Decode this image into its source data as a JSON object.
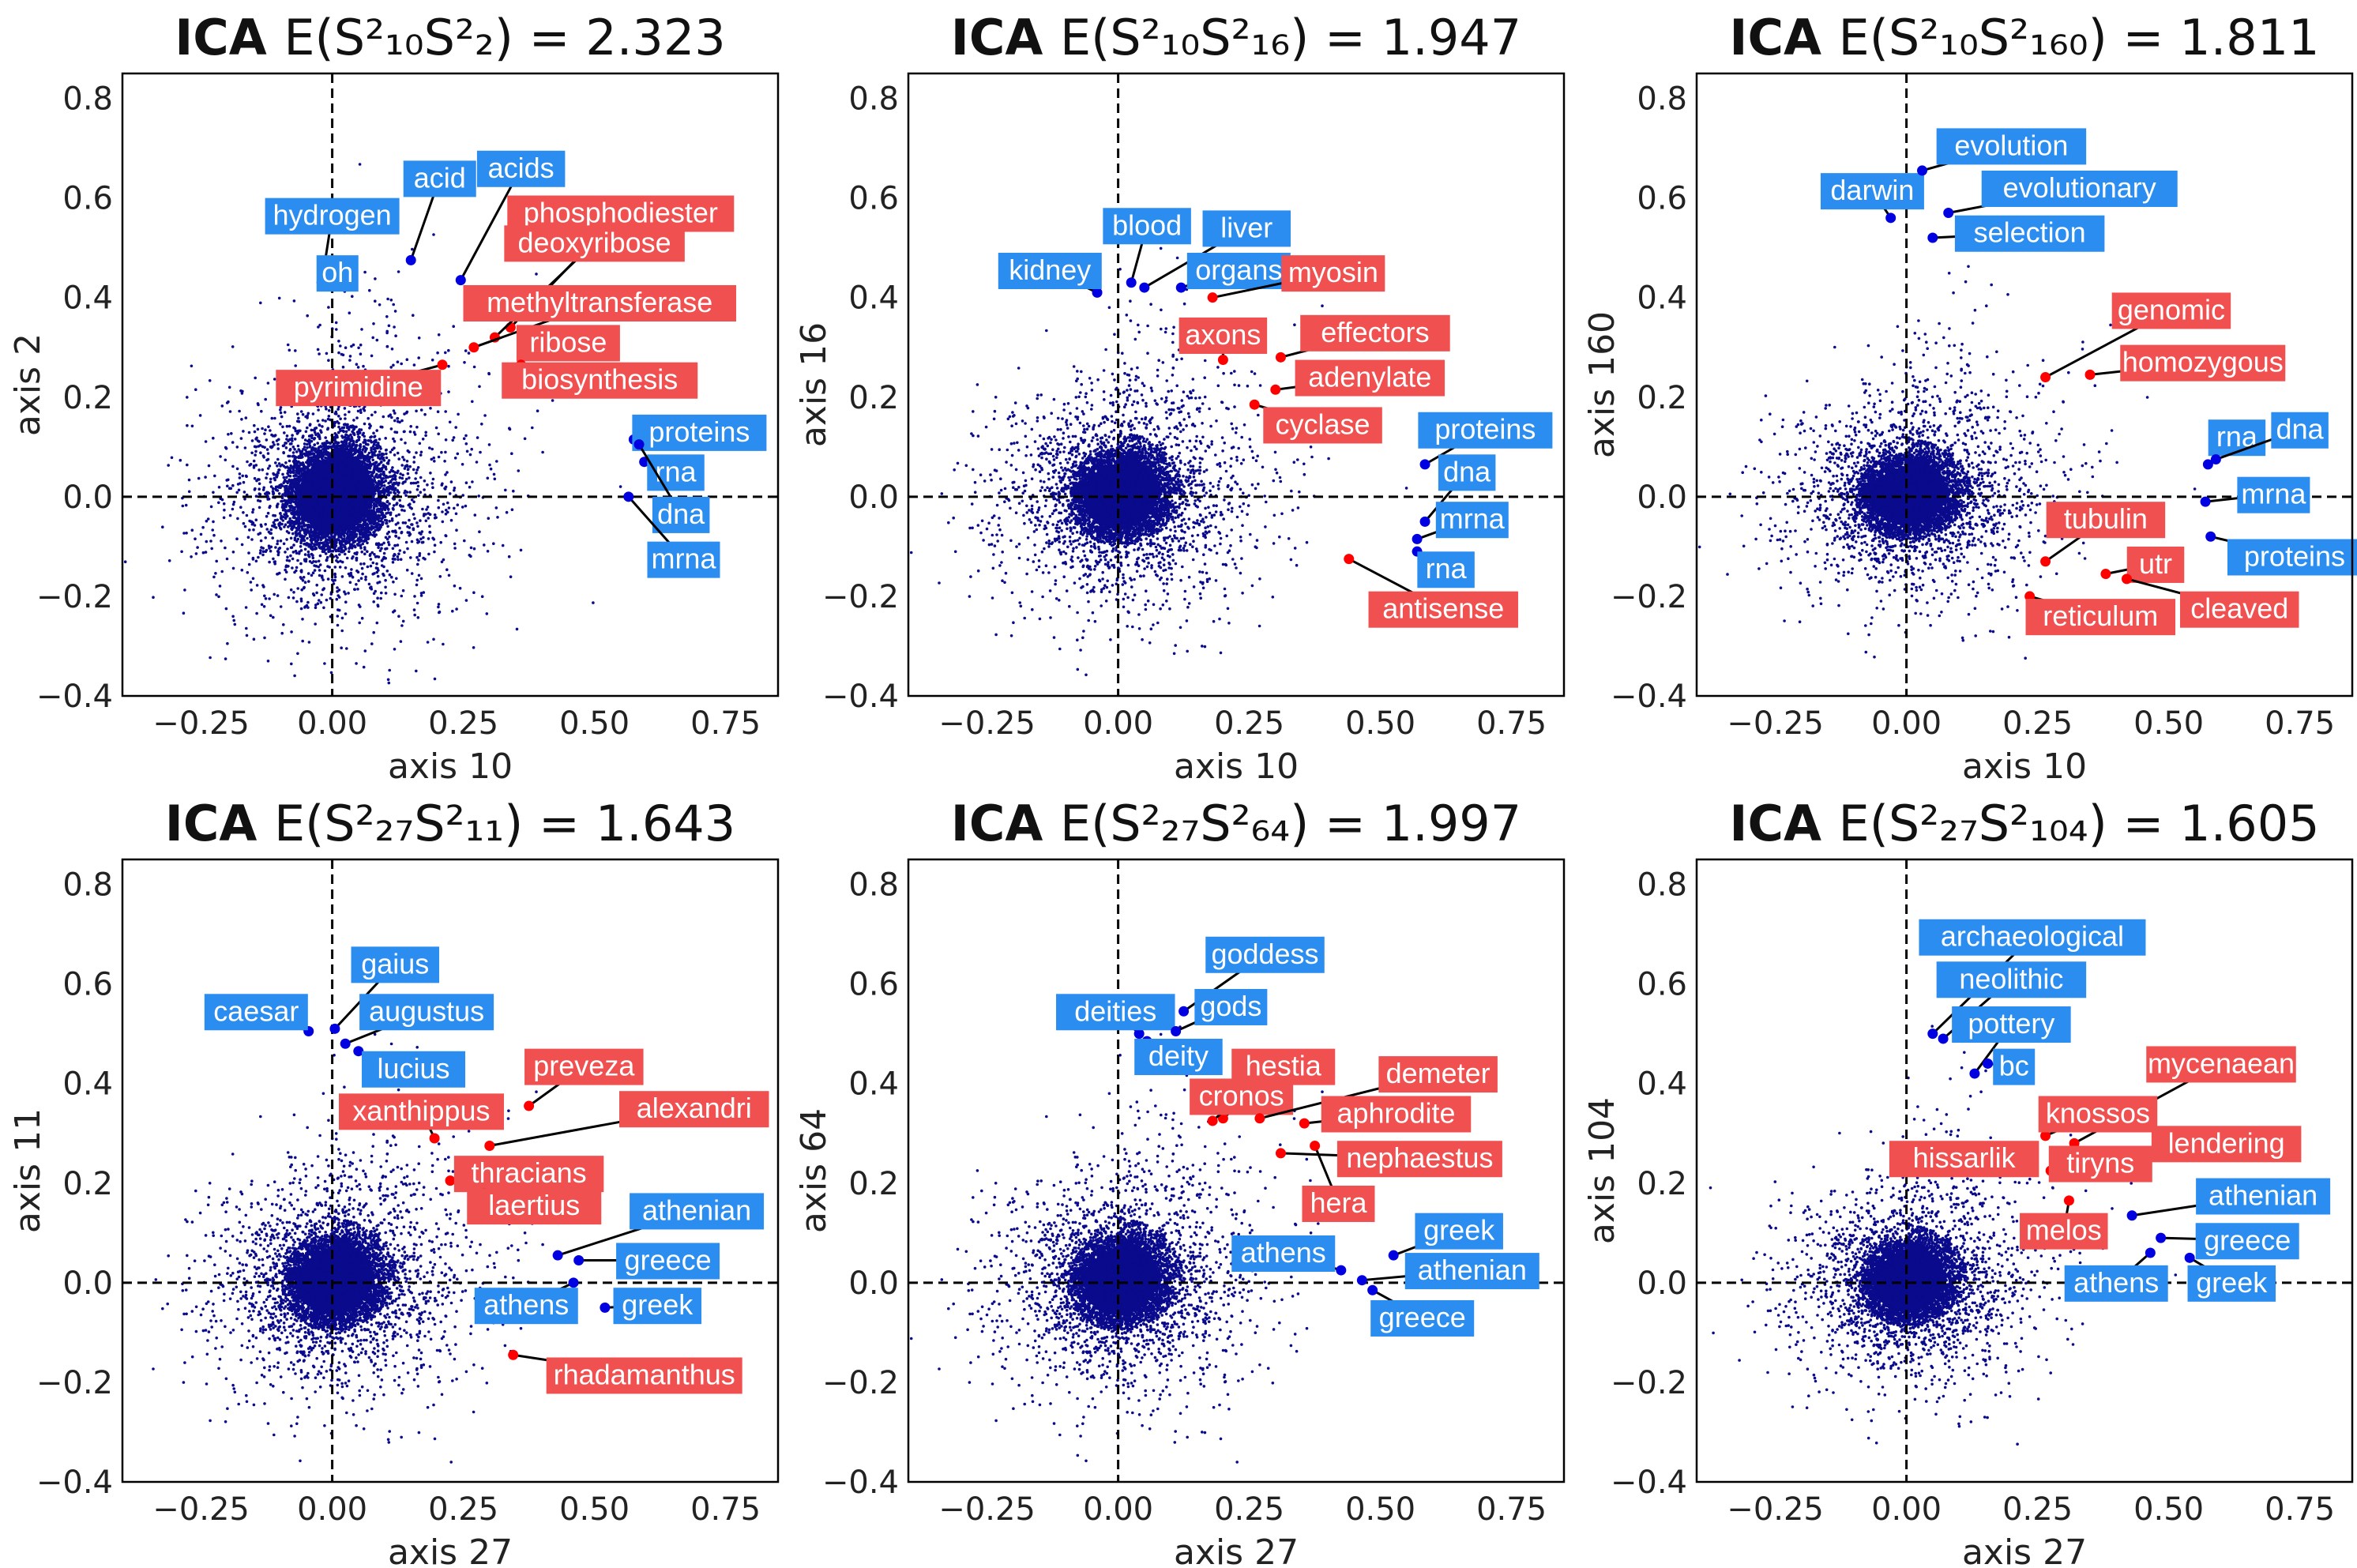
{
  "colors": {
    "scatter": "#0a0a8c",
    "blue_point": "#0000e0",
    "red_point": "#ff0000",
    "blue_box": "#2b8df0",
    "red_box": "#f05050",
    "label_text": "#ffffff",
    "frame": "#000000"
  },
  "chart_data": [
    {
      "type": "scatter",
      "title_bold": "ICA",
      "title_formula": "E(S²₁₀S²₂) = 2.323",
      "xlabel": "axis 10",
      "ylabel": "axis 2",
      "xlim": [
        -0.4,
        0.85
      ],
      "ylim": [
        -0.4,
        0.85
      ],
      "xticks": [
        -0.25,
        0.0,
        0.25,
        0.5,
        0.75
      ],
      "xtick_labels": [
        "−0.25",
        "0.00",
        "0.25",
        "0.50",
        "0.75"
      ],
      "yticks": [
        -0.4,
        -0.2,
        0.0,
        0.2,
        0.4,
        0.6,
        0.8
      ],
      "ytick_labels": [
        "−0.4",
        "−0.2",
        "0.0",
        "0.2",
        "0.4",
        "0.6",
        "0.8"
      ],
      "cloud_spread": [
        0.3,
        0.35
      ],
      "labeled_points": [
        {
          "word": "hydrogen",
          "color": "blue",
          "x": -0.02,
          "y": 0.43,
          "lx": 0.0,
          "ly": 0.565
        },
        {
          "word": "oh",
          "color": "blue",
          "x": -0.02,
          "y": 0.43,
          "lx": 0.01,
          "ly": 0.45
        },
        {
          "word": "acid",
          "color": "blue",
          "x": 0.15,
          "y": 0.475,
          "lx": 0.205,
          "ly": 0.64
        },
        {
          "word": "acids",
          "color": "blue",
          "x": 0.245,
          "y": 0.435,
          "lx": 0.36,
          "ly": 0.66
        },
        {
          "word": "phosphodiester",
          "color": "red",
          "x": 0.34,
          "y": 0.34,
          "lx": 0.55,
          "ly": 0.57
        },
        {
          "word": "deoxyribose",
          "color": "red",
          "x": 0.31,
          "y": 0.32,
          "lx": 0.5,
          "ly": 0.51
        },
        {
          "word": "methyltransferase",
          "color": "red",
          "x": 0.27,
          "y": 0.3,
          "lx": 0.51,
          "ly": 0.39
        },
        {
          "word": "ribose",
          "color": "red",
          "x": 0.375,
          "y": 0.29,
          "lx": 0.45,
          "ly": 0.31
        },
        {
          "word": "biosynthesis",
          "color": "red",
          "x": 0.36,
          "y": 0.265,
          "lx": 0.51,
          "ly": 0.235
        },
        {
          "word": "pyrimidine",
          "color": "red",
          "x": 0.21,
          "y": 0.265,
          "lx": 0.05,
          "ly": 0.22
        },
        {
          "word": "proteins",
          "color": "blue",
          "x": 0.575,
          "y": 0.115,
          "lx": 0.7,
          "ly": 0.13
        },
        {
          "word": "rna",
          "color": "blue",
          "x": 0.595,
          "y": 0.07,
          "lx": 0.655,
          "ly": 0.05
        },
        {
          "word": "dna",
          "color": "blue",
          "x": 0.585,
          "y": 0.105,
          "lx": 0.665,
          "ly": -0.035
        },
        {
          "word": "mrna",
          "color": "blue",
          "x": 0.565,
          "y": 0.0,
          "lx": 0.67,
          "ly": -0.125
        }
      ]
    },
    {
      "type": "scatter",
      "title_bold": "ICA",
      "title_formula": "E(S²₁₀S²₁₆) = 1.947",
      "xlabel": "axis 10",
      "ylabel": "axis 16",
      "xlim": [
        -0.4,
        0.85
      ],
      "ylim": [
        -0.4,
        0.85
      ],
      "xticks": [
        -0.25,
        0.0,
        0.25,
        0.5,
        0.75
      ],
      "xtick_labels": [
        "−0.25",
        "0.00",
        "0.25",
        "0.50",
        "0.75"
      ],
      "yticks": [
        -0.4,
        -0.2,
        0.0,
        0.2,
        0.4,
        0.6,
        0.8
      ],
      "ytick_labels": [
        "−0.4",
        "−0.2",
        "0.0",
        "0.2",
        "0.4",
        "0.6",
        "0.8"
      ],
      "cloud_spread": [
        0.3,
        0.3
      ],
      "labeled_points": [
        {
          "word": "kidney",
          "color": "blue",
          "x": -0.04,
          "y": 0.41,
          "lx": -0.13,
          "ly": 0.455
        },
        {
          "word": "blood",
          "color": "blue",
          "x": 0.025,
          "y": 0.43,
          "lx": 0.055,
          "ly": 0.545
        },
        {
          "word": "liver",
          "color": "blue",
          "x": 0.05,
          "y": 0.42,
          "lx": 0.245,
          "ly": 0.54
        },
        {
          "word": "organs",
          "color": "blue",
          "x": 0.12,
          "y": 0.42,
          "lx": 0.23,
          "ly": 0.455
        },
        {
          "word": "myosin",
          "color": "red",
          "x": 0.18,
          "y": 0.4,
          "lx": 0.41,
          "ly": 0.45
        },
        {
          "word": "axons",
          "color": "red",
          "x": 0.2,
          "y": 0.275,
          "lx": 0.2,
          "ly": 0.325
        },
        {
          "word": "effectors",
          "color": "red",
          "x": 0.31,
          "y": 0.28,
          "lx": 0.49,
          "ly": 0.33
        },
        {
          "word": "adenylate",
          "color": "red",
          "x": 0.3,
          "y": 0.215,
          "lx": 0.48,
          "ly": 0.24
        },
        {
          "word": "cyclase",
          "color": "red",
          "x": 0.26,
          "y": 0.185,
          "lx": 0.39,
          "ly": 0.145
        },
        {
          "word": "proteins",
          "color": "blue",
          "x": 0.585,
          "y": 0.065,
          "lx": 0.7,
          "ly": 0.135
        },
        {
          "word": "dna",
          "color": "blue",
          "x": 0.585,
          "y": -0.05,
          "lx": 0.665,
          "ly": 0.05
        },
        {
          "word": "mrna",
          "color": "blue",
          "x": 0.57,
          "y": -0.085,
          "lx": 0.675,
          "ly": -0.045
        },
        {
          "word": "rna",
          "color": "blue",
          "x": 0.57,
          "y": -0.11,
          "lx": 0.625,
          "ly": -0.145
        },
        {
          "word": "antisense",
          "color": "red",
          "x": 0.44,
          "y": -0.125,
          "lx": 0.62,
          "ly": -0.225
        }
      ]
    },
    {
      "type": "scatter",
      "title_bold": "ICA",
      "title_formula": "E(S²₁₀S²₁₆₀) = 1.811",
      "xlabel": "axis 10",
      "ylabel": "axis 160",
      "xlim": [
        -0.4,
        0.85
      ],
      "ylim": [
        -0.4,
        0.85
      ],
      "xticks": [
        -0.25,
        0.0,
        0.25,
        0.5,
        0.75
      ],
      "xtick_labels": [
        "−0.25",
        "0.00",
        "0.25",
        "0.50",
        "0.75"
      ],
      "yticks": [
        -0.4,
        -0.2,
        0.0,
        0.2,
        0.4,
        0.6,
        0.8
      ],
      "ytick_labels": [
        "−0.4",
        "−0.2",
        "0.0",
        "0.2",
        "0.4",
        "0.6",
        "0.8"
      ],
      "cloud_spread": [
        0.3,
        0.27
      ],
      "labeled_points": [
        {
          "word": "darwin",
          "color": "blue",
          "x": -0.03,
          "y": 0.56,
          "lx": -0.065,
          "ly": 0.615
        },
        {
          "word": "evolution",
          "color": "blue",
          "x": 0.03,
          "y": 0.655,
          "lx": 0.2,
          "ly": 0.705
        },
        {
          "word": "evolutionary",
          "color": "blue",
          "x": 0.08,
          "y": 0.57,
          "lx": 0.33,
          "ly": 0.62
        },
        {
          "word": "selection",
          "color": "blue",
          "x": 0.05,
          "y": 0.52,
          "lx": 0.235,
          "ly": 0.53
        },
        {
          "word": "genomic",
          "color": "red",
          "x": 0.265,
          "y": 0.24,
          "lx": 0.505,
          "ly": 0.375
        },
        {
          "word": "homozygous",
          "color": "red",
          "x": 0.35,
          "y": 0.245,
          "lx": 0.565,
          "ly": 0.27
        },
        {
          "word": "rna",
          "color": "blue",
          "x": 0.575,
          "y": 0.065,
          "lx": 0.63,
          "ly": 0.12
        },
        {
          "word": "dna",
          "color": "blue",
          "x": 0.59,
          "y": 0.075,
          "lx": 0.75,
          "ly": 0.135
        },
        {
          "word": "mrna",
          "color": "blue",
          "x": 0.57,
          "y": -0.01,
          "lx": 0.7,
          "ly": 0.005
        },
        {
          "word": "proteins",
          "color": "blue",
          "x": 0.58,
          "y": -0.08,
          "lx": 0.74,
          "ly": -0.12
        },
        {
          "word": "tubulin",
          "color": "red",
          "x": 0.265,
          "y": -0.13,
          "lx": 0.38,
          "ly": -0.045
        },
        {
          "word": "utr",
          "color": "red",
          "x": 0.38,
          "y": -0.155,
          "lx": 0.475,
          "ly": -0.135
        },
        {
          "word": "cleaved",
          "color": "red",
          "x": 0.42,
          "y": -0.165,
          "lx": 0.635,
          "ly": -0.225
        },
        {
          "word": "reticulum",
          "color": "red",
          "x": 0.235,
          "y": -0.2,
          "lx": 0.37,
          "ly": -0.24
        }
      ]
    },
    {
      "type": "scatter",
      "title_bold": "ICA",
      "title_formula": "E(S²₂₇S²₁₁) = 1.643",
      "xlabel": "axis 27",
      "ylabel": "axis 11",
      "xlim": [
        -0.4,
        0.85
      ],
      "ylim": [
        -0.4,
        0.85
      ],
      "xticks": [
        -0.25,
        0.0,
        0.25,
        0.5,
        0.75
      ],
      "xtick_labels": [
        "−0.25",
        "0.00",
        "0.25",
        "0.50",
        "0.75"
      ],
      "yticks": [
        -0.4,
        -0.2,
        0.0,
        0.2,
        0.4,
        0.6,
        0.8
      ],
      "ytick_labels": [
        "−0.4",
        "−0.2",
        "0.0",
        "0.2",
        "0.4",
        "0.6",
        "0.8"
      ],
      "cloud_spread": [
        0.3,
        0.3
      ],
      "labeled_points": [
        {
          "word": "caesar",
          "color": "blue",
          "x": -0.045,
          "y": 0.505,
          "lx": -0.145,
          "ly": 0.545
        },
        {
          "word": "gaius",
          "color": "blue",
          "x": 0.005,
          "y": 0.51,
          "lx": 0.12,
          "ly": 0.64
        },
        {
          "word": "augustus",
          "color": "blue",
          "x": 0.025,
          "y": 0.48,
          "lx": 0.18,
          "ly": 0.545
        },
        {
          "word": "lucius",
          "color": "blue",
          "x": 0.05,
          "y": 0.465,
          "lx": 0.155,
          "ly": 0.43
        },
        {
          "word": "preveza",
          "color": "red",
          "x": 0.375,
          "y": 0.355,
          "lx": 0.48,
          "ly": 0.435
        },
        {
          "word": "xanthippus",
          "color": "red",
          "x": 0.195,
          "y": 0.29,
          "lx": 0.17,
          "ly": 0.345
        },
        {
          "word": "alexandri",
          "color": "red",
          "x": 0.3,
          "y": 0.275,
          "lx": 0.69,
          "ly": 0.35
        },
        {
          "word": "thracians",
          "color": "red",
          "x": 0.225,
          "y": 0.205,
          "lx": 0.375,
          "ly": 0.22
        },
        {
          "word": "laertius",
          "color": "red",
          "x": 0.29,
          "y": 0.18,
          "lx": 0.385,
          "ly": 0.155
        },
        {
          "word": "athenian",
          "color": "blue",
          "x": 0.43,
          "y": 0.055,
          "lx": 0.695,
          "ly": 0.145
        },
        {
          "word": "greece",
          "color": "blue",
          "x": 0.47,
          "y": 0.045,
          "lx": 0.64,
          "ly": 0.045
        },
        {
          "word": "athens",
          "color": "blue",
          "x": 0.46,
          "y": 0.0,
          "lx": 0.37,
          "ly": -0.045
        },
        {
          "word": "greek",
          "color": "blue",
          "x": 0.52,
          "y": -0.05,
          "lx": 0.62,
          "ly": -0.045
        },
        {
          "word": "rhadamanthus",
          "color": "red",
          "x": 0.345,
          "y": -0.145,
          "lx": 0.595,
          "ly": -0.185
        }
      ]
    },
    {
      "type": "scatter",
      "title_bold": "ICA",
      "title_formula": "E(S²₂₇S²₆₄) = 1.997",
      "xlabel": "axis 27",
      "ylabel": "axis 64",
      "xlim": [
        -0.4,
        0.85
      ],
      "ylim": [
        -0.4,
        0.85
      ],
      "xticks": [
        -0.25,
        0.0,
        0.25,
        0.5,
        0.75
      ],
      "xtick_labels": [
        "−0.25",
        "0.00",
        "0.25",
        "0.50",
        "0.75"
      ],
      "yticks": [
        -0.4,
        -0.2,
        0.0,
        0.2,
        0.4,
        0.6,
        0.8
      ],
      "ytick_labels": [
        "−0.4",
        "−0.2",
        "0.0",
        "0.2",
        "0.4",
        "0.6",
        "0.8"
      ],
      "cloud_spread": [
        0.3,
        0.3
      ],
      "labeled_points": [
        {
          "word": "goddess",
          "color": "blue",
          "x": 0.125,
          "y": 0.545,
          "lx": 0.28,
          "ly": 0.66
        },
        {
          "word": "deities",
          "color": "blue",
          "x": 0.04,
          "y": 0.5,
          "lx": -0.005,
          "ly": 0.545
        },
        {
          "word": "gods",
          "color": "blue",
          "x": 0.11,
          "y": 0.505,
          "lx": 0.215,
          "ly": 0.555
        },
        {
          "word": "deity",
          "color": "blue",
          "x": 0.055,
          "y": 0.485,
          "lx": 0.115,
          "ly": 0.455
        },
        {
          "word": "hestia",
          "color": "red",
          "x": 0.2,
          "y": 0.33,
          "lx": 0.315,
          "ly": 0.435
        },
        {
          "word": "cronos",
          "color": "red",
          "x": 0.18,
          "y": 0.325,
          "lx": 0.235,
          "ly": 0.375
        },
        {
          "word": "demeter",
          "color": "red",
          "x": 0.27,
          "y": 0.33,
          "lx": 0.61,
          "ly": 0.42
        },
        {
          "word": "aphrodite",
          "color": "red",
          "x": 0.355,
          "y": 0.32,
          "lx": 0.53,
          "ly": 0.34
        },
        {
          "word": "nephaestus",
          "color": "red",
          "x": 0.31,
          "y": 0.26,
          "lx": 0.575,
          "ly": 0.25
        },
        {
          "word": "hera",
          "color": "red",
          "x": 0.375,
          "y": 0.275,
          "lx": 0.42,
          "ly": 0.16
        },
        {
          "word": "greek",
          "color": "blue",
          "x": 0.525,
          "y": 0.055,
          "lx": 0.65,
          "ly": 0.105
        },
        {
          "word": "athens",
          "color": "blue",
          "x": 0.425,
          "y": 0.025,
          "lx": 0.315,
          "ly": 0.06
        },
        {
          "word": "athenian",
          "color": "blue",
          "x": 0.465,
          "y": 0.005,
          "lx": 0.675,
          "ly": 0.025
        },
        {
          "word": "greece",
          "color": "blue",
          "x": 0.485,
          "y": -0.015,
          "lx": 0.58,
          "ly": -0.07
        }
      ]
    },
    {
      "type": "scatter",
      "title_bold": "ICA",
      "title_formula": "E(S²₂₇S²₁₀₄) = 1.605",
      "xlabel": "axis 27",
      "ylabel": "axis 104",
      "xlim": [
        -0.4,
        0.85
      ],
      "ylim": [
        -0.4,
        0.85
      ],
      "xticks": [
        -0.25,
        0.0,
        0.25,
        0.5,
        0.75
      ],
      "xtick_labels": [
        "−0.25",
        "0.00",
        "0.25",
        "0.50",
        "0.75"
      ],
      "yticks": [
        -0.4,
        -0.2,
        0.0,
        0.2,
        0.4,
        0.6,
        0.8
      ],
      "ytick_labels": [
        "−0.4",
        "−0.2",
        "0.0",
        "0.2",
        "0.4",
        "0.6",
        "0.8"
      ],
      "cloud_spread": [
        0.28,
        0.27
      ],
      "labeled_points": [
        {
          "word": "archaeological",
          "color": "blue",
          "x": 0.05,
          "y": 0.5,
          "lx": 0.24,
          "ly": 0.695
        },
        {
          "word": "neolithic",
          "color": "blue",
          "x": 0.07,
          "y": 0.49,
          "lx": 0.2,
          "ly": 0.61
        },
        {
          "word": "pottery",
          "color": "blue",
          "x": 0.13,
          "y": 0.42,
          "lx": 0.2,
          "ly": 0.52
        },
        {
          "word": "bc",
          "color": "blue",
          "x": 0.155,
          "y": 0.44,
          "lx": 0.205,
          "ly": 0.435
        },
        {
          "word": "mycenaean",
          "color": "red",
          "x": 0.32,
          "y": 0.28,
          "lx": 0.6,
          "ly": 0.44
        },
        {
          "word": "knossos",
          "color": "red",
          "x": 0.265,
          "y": 0.295,
          "lx": 0.365,
          "ly": 0.34
        },
        {
          "word": "lendering",
          "color": "red",
          "x": 0.31,
          "y": 0.215,
          "lx": 0.61,
          "ly": 0.28
        },
        {
          "word": "tiryns",
          "color": "red",
          "x": 0.275,
          "y": 0.225,
          "lx": 0.37,
          "ly": 0.24
        },
        {
          "word": "hissarlik",
          "color": "red",
          "x": 0.22,
          "y": 0.235,
          "lx": 0.11,
          "ly": 0.25
        },
        {
          "word": "melos",
          "color": "red",
          "x": 0.31,
          "y": 0.165,
          "lx": 0.3,
          "ly": 0.105
        },
        {
          "word": "athenian",
          "color": "blue",
          "x": 0.43,
          "y": 0.135,
          "lx": 0.68,
          "ly": 0.175
        },
        {
          "word": "greece",
          "color": "blue",
          "x": 0.485,
          "y": 0.09,
          "lx": 0.65,
          "ly": 0.085
        },
        {
          "word": "athens",
          "color": "blue",
          "x": 0.465,
          "y": 0.06,
          "lx": 0.4,
          "ly": 0.0
        },
        {
          "word": "greek",
          "color": "blue",
          "x": 0.54,
          "y": 0.05,
          "lx": 0.62,
          "ly": 0.0
        }
      ]
    }
  ]
}
